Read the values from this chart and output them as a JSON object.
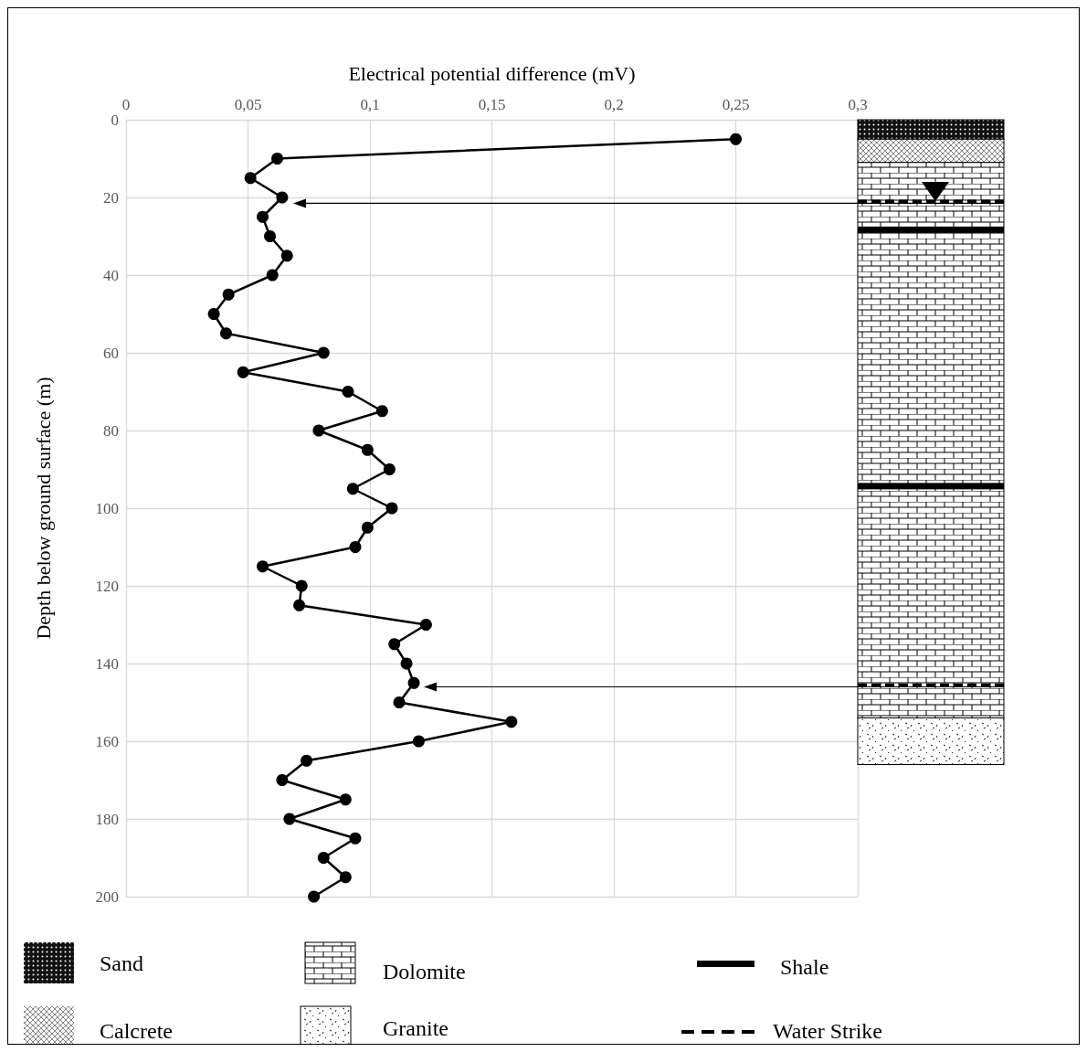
{
  "chart_data": {
    "type": "line",
    "xlabel": "Electrical potential difference (mV)",
    "ylabel": "Depth below ground surface (m)",
    "x": [
      0.25,
      0.062,
      0.051,
      0.064,
      0.056,
      0.059,
      0.066,
      0.06,
      0.042,
      0.036,
      0.041,
      0.081,
      0.048,
      0.091,
      0.105,
      0.079,
      0.099,
      0.108,
      0.093,
      0.109,
      0.099,
      0.094,
      0.056,
      0.072,
      0.071,
      0.123,
      0.11,
      0.115,
      0.118,
      0.112,
      0.158,
      0.12,
      0.074,
      0.064,
      0.09,
      0.067,
      0.094,
      0.081,
      0.09,
      0.077
    ],
    "series": [
      {
        "color": "#000000",
        "values": [
          5,
          10,
          15,
          20,
          25,
          30,
          35,
          40,
          45,
          50,
          55,
          60,
          65,
          70,
          75,
          80,
          85,
          90,
          95,
          100,
          105,
          110,
          115,
          120,
          125,
          130,
          135,
          140,
          145,
          150,
          155,
          160,
          165,
          170,
          175,
          180,
          185,
          190,
          195,
          200
        ]
      }
    ],
    "xlim": [
      0,
      0.3
    ],
    "xticks": [
      0,
      {
        "value": 0.05,
        "label": "0,05"
      },
      {
        "value": 0.1,
        "label": "0,1"
      },
      {
        "value": 0.15,
        "label": "0,15"
      },
      {
        "value": 0.2,
        "label": "0,2"
      },
      {
        "value": 0.25,
        "label": "0,25"
      },
      {
        "value": 0.3,
        "label": "0,3"
      }
    ],
    "ylim": [
      200,
      0
    ],
    "yticks": [
      0,
      20,
      40,
      60,
      80,
      100,
      120,
      140,
      160,
      180,
      200
    ],
    "grid": true,
    "marker": "circle",
    "line_style": "solid",
    "annotations": [
      "Sand",
      "Calcrete",
      "Dolomite",
      "Granite",
      "Shale",
      "Water Strike"
    ]
  }
}
